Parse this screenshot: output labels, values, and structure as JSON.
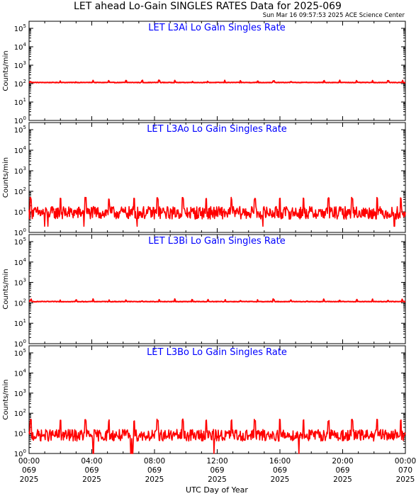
{
  "header": {
    "title": "LET ahead Lo-Gain SINGLES RATES Data for 2025-069",
    "timestamp": "Sun Mar 16 09:57:53 2025 ACE Science Center"
  },
  "colors": {
    "data": "#ff0000",
    "panel_title": "#0000ff",
    "axes": "#000000",
    "background": "#ffffff"
  },
  "chart_data": [
    {
      "type": "line",
      "title": "LET L3Ai Lo Gain Singles Rate",
      "ylabel": "Counts/min",
      "yscale": "log",
      "ylim": [
        1,
        100000
      ],
      "xlim_hours": [
        0,
        24
      ],
      "grid": false,
      "series": [
        {
          "baseline": 115,
          "spike_value": 135,
          "spike_hours": [
            0.1,
            2.0,
            3.0,
            4.1,
            5.1,
            6.2,
            7.2,
            8.3,
            9.3,
            10.4,
            11.4,
            12.5,
            13.5,
            14.6,
            15.6,
            16.7,
            17.7,
            18.8,
            19.8,
            20.9,
            21.9,
            22.9,
            23.8
          ]
        }
      ]
    },
    {
      "type": "line",
      "title": "LET L3Ao Lo Gain Singles Rate",
      "ylabel": "Counts/min",
      "yscale": "log",
      "ylim": [
        1,
        100000
      ],
      "xlim_hours": [
        0,
        24
      ],
      "grid": false,
      "series": [
        {
          "baseline": 9,
          "noise_range": [
            3,
            20
          ],
          "spike_value": 45,
          "spike_hours": [
            0.1,
            2.0,
            3.6,
            5.1,
            6.7,
            8.2,
            9.8,
            11.3,
            12.9,
            14.4,
            16.0,
            17.5,
            19.1,
            20.6,
            22.2,
            23.7
          ],
          "dip_hours": [
            1.0,
            1.2,
            3.5,
            6.9,
            14.9,
            23.3
          ],
          "dip_value": 2
        }
      ]
    },
    {
      "type": "line",
      "title": "LET L3Bi Lo Gain Singles Rate",
      "ylabel": "Counts/min",
      "yscale": "log",
      "ylim": [
        1,
        100000
      ],
      "xlim_hours": [
        0,
        24
      ],
      "grid": false,
      "series": [
        {
          "baseline": 115,
          "spike_value": 135,
          "spike_hours": [
            0.1,
            2.0,
            3.0,
            4.1,
            5.1,
            6.2,
            7.2,
            8.3,
            9.3,
            10.4,
            11.4,
            12.5,
            13.5,
            14.6,
            15.6,
            16.7,
            17.7,
            18.8,
            19.8,
            20.9,
            21.9,
            22.9,
            23.8
          ]
        }
      ]
    },
    {
      "type": "line",
      "title": "LET L3Bo Lo Gain Singles Rate",
      "ylabel": "Counts/min",
      "yscale": "log",
      "ylim": [
        1,
        100000
      ],
      "xlim_hours": [
        0,
        24
      ],
      "grid": false,
      "series": [
        {
          "baseline": 8,
          "noise_range": [
            3,
            18
          ],
          "spike_value": 45,
          "spike_hours": [
            0.1,
            2.0,
            3.6,
            5.1,
            6.7,
            8.2,
            9.8,
            11.3,
            12.9,
            14.4,
            16.0,
            17.5,
            19.1,
            20.6,
            22.2,
            23.7
          ],
          "dip_hours": [
            4.1,
            6.5,
            6.6,
            11.8,
            17.2
          ],
          "dip_value": 1
        }
      ]
    }
  ],
  "x_axis": {
    "label": "UTC Day of Year",
    "ticks": [
      {
        "hour": 0,
        "time": "00:00",
        "doy": "069",
        "year": "2025"
      },
      {
        "hour": 4,
        "time": "04:00",
        "doy": "069",
        "year": "2025"
      },
      {
        "hour": 8,
        "time": "08:00",
        "doy": "069",
        "year": "2025"
      },
      {
        "hour": 12,
        "time": "12:00",
        "doy": "069",
        "year": "2025"
      },
      {
        "hour": 16,
        "time": "16:00",
        "doy": "069",
        "year": "2025"
      },
      {
        "hour": 20,
        "time": "20:00",
        "doy": "069",
        "year": "2025"
      },
      {
        "hour": 24,
        "time": "00:00",
        "doy": "070",
        "year": "2025"
      }
    ]
  }
}
